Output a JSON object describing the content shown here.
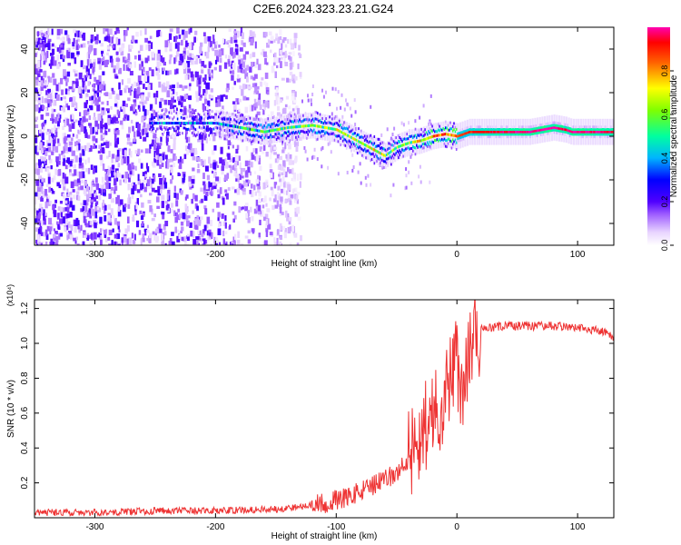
{
  "title": "C2E6.2024.323.23.21.G24",
  "chart_data": [
    {
      "type": "heatmap",
      "xlabel": "Height of straight line (km)",
      "ylabel": "Frequency (Hz)",
      "xlim": [
        -350,
        130
      ],
      "ylim": [
        -50,
        50
      ],
      "x_ticks": [
        -300,
        -200,
        -100,
        0,
        100
      ],
      "y_ticks": [
        -40,
        -20,
        0,
        20,
        40
      ],
      "colorbar": {
        "label": "Normalized spectral amplitude",
        "range": [
          0,
          1
        ],
        "ticks": [
          "0.0",
          "0.2",
          "0.4",
          "0.6",
          "0.8"
        ],
        "colors": [
          "#ffffff",
          "#e0c8ff",
          "#7a00ff",
          "#0000ff",
          "#00c8ff",
          "#00ff60",
          "#c8ff00",
          "#ff8000",
          "#ff0000",
          "#ff00c0"
        ]
      },
      "ridge": {
        "x": [
          -250,
          -200,
          -180,
          -160,
          -140,
          -120,
          -100,
          -90,
          -80,
          -70,
          -60,
          -50,
          -40,
          -30,
          -20,
          -10,
          0,
          10,
          30,
          60,
          80,
          90,
          95,
          100,
          130
        ],
        "y": [
          6,
          6,
          4,
          2,
          4,
          5,
          3,
          0,
          -3,
          -6,
          -9,
          -5,
          -3,
          -2,
          0,
          1,
          0,
          2,
          2,
          2,
          4,
          3,
          2,
          2,
          2
        ],
        "amplitude": [
          0.3,
          0.35,
          0.45,
          0.5,
          0.55,
          0.55,
          0.6,
          0.6,
          0.62,
          0.65,
          0.6,
          0.55,
          0.6,
          0.7,
          0.8,
          0.85,
          0.85,
          0.9,
          0.95,
          1.0,
          1.0,
          0.95,
          1.0,
          1.0,
          0.95
        ]
      },
      "noise_region": {
        "x_start": -350,
        "x_end": -130,
        "y_span": [
          -50,
          50
        ],
        "amplitude": 0.2
      }
    },
    {
      "type": "line",
      "xlabel": "Height of straight line (km)",
      "ylabel": "SNR (10 * v/v)",
      "y_multiplier": "(x10⁴)",
      "xlim": [
        -350,
        130
      ],
      "ylim": [
        0,
        1.25
      ],
      "x_ticks": [
        -300,
        -200,
        -100,
        0,
        100
      ],
      "y_ticks": [
        "0.2",
        "0.4",
        "0.6",
        "0.8",
        "1.0",
        "1.2"
      ],
      "color": "#ee3333",
      "series": [
        {
          "x": [
            -350,
            -300,
            -250,
            -200,
            -150,
            -120,
            -100,
            -90,
            -80,
            -70,
            -60,
            -50,
            -45,
            -40,
            -35,
            -30,
            -25,
            -20,
            -15,
            -10,
            -5,
            0,
            5,
            10,
            15,
            20,
            30,
            40,
            60,
            80,
            100,
            120,
            130
          ],
          "values": [
            0.03,
            0.03,
            0.04,
            0.04,
            0.05,
            0.07,
            0.1,
            0.12,
            0.15,
            0.18,
            0.22,
            0.25,
            0.3,
            0.35,
            0.45,
            0.5,
            0.55,
            0.55,
            0.65,
            0.7,
            0.8,
            0.9,
            0.75,
            0.95,
            1.02,
            1.08,
            1.09,
            1.1,
            1.1,
            1.1,
            1.09,
            1.07,
            1.03
          ]
        }
      ]
    }
  ]
}
